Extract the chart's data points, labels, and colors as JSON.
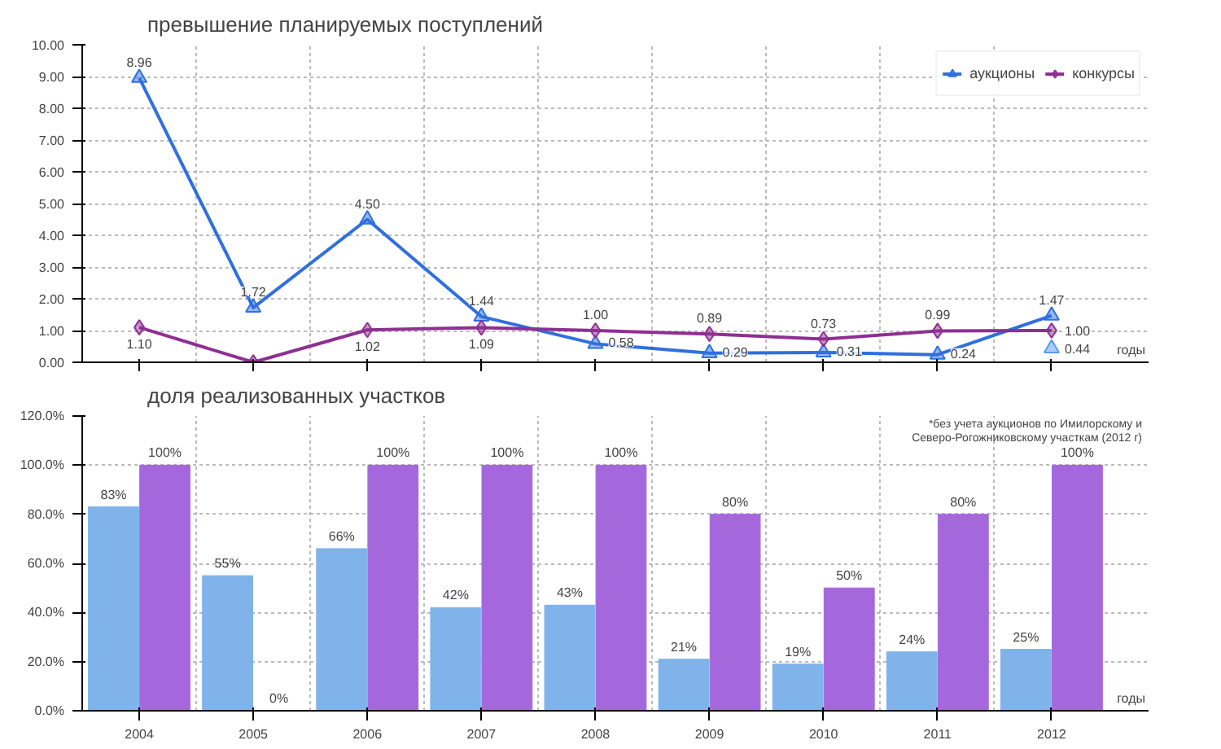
{
  "chart_data": [
    {
      "type": "line",
      "title": "превышение планируемых поступлений",
      "xlabel": "годы",
      "categories": [
        "2004",
        "2005",
        "2006",
        "2007",
        "2008",
        "2009",
        "2010",
        "2011",
        "2012"
      ],
      "series": [
        {
          "name": "аукционы",
          "color": "#2f6fe0",
          "marker": "triangle",
          "values": [
            8.96,
            1.72,
            4.5,
            1.44,
            0.58,
            0.29,
            0.31,
            0.24,
            1.47
          ],
          "value_labels": [
            "8.96",
            "1.72",
            "4.50",
            "1.44",
            "0.58",
            "0.29",
            "0.31",
            "0.24",
            "1.47"
          ]
        },
        {
          "name": "конкурсы",
          "color": "#8e2f92",
          "marker": "diamond",
          "values": [
            1.1,
            0.0,
            1.02,
            1.09,
            1.0,
            0.89,
            0.73,
            0.99,
            1.0
          ],
          "value_labels": [
            "1.10",
            null,
            "1.02",
            "1.09",
            "1.00",
            "0.89",
            "0.73",
            "0.99",
            "1.00"
          ]
        },
        {
          "type": "scatter",
          "color": "#5b9af0",
          "marker": "triangle",
          "values": [
            null,
            null,
            null,
            null,
            null,
            null,
            null,
            null,
            0.44
          ],
          "value_labels": [
            null,
            null,
            null,
            null,
            null,
            null,
            null,
            null,
            "0.44"
          ]
        }
      ],
      "ylim": [
        0,
        10
      ],
      "yticks": [
        {
          "value": 0,
          "label": "0.00"
        },
        {
          "value": 1,
          "label": "1.00"
        },
        {
          "value": 2,
          "label": "2.00"
        },
        {
          "value": 3,
          "label": "3.00"
        },
        {
          "value": 4,
          "label": "4.00"
        },
        {
          "value": 5,
          "label": "5.00"
        },
        {
          "value": 6,
          "label": "6.00"
        },
        {
          "value": 7,
          "label": "7.00"
        },
        {
          "value": 8,
          "label": "8.00"
        },
        {
          "value": 9,
          "label": "9.00"
        },
        {
          "value": 10,
          "label": "10.00"
        }
      ],
      "grid": true,
      "legend": "top right",
      "tick_labels": "y",
      "line_style": "solid"
    },
    {
      "type": "bar",
      "title": "доля реализованных участков",
      "xlabel": "годы",
      "categories": [
        "2004",
        "2005",
        "2006",
        "2007",
        "2008",
        "2009",
        "2010",
        "2011",
        "2012"
      ],
      "series": [
        {
          "color": "#7fb3ea",
          "values": [
            83,
            55,
            66,
            42,
            43,
            21,
            19,
            24,
            25
          ],
          "value_labels": [
            "83%",
            "55%",
            "66%",
            "42%",
            "43%",
            "21%",
            "19%",
            "24%",
            "25%"
          ]
        },
        {
          "color": "#a468dc",
          "values": [
            100,
            0,
            100,
            100,
            100,
            80,
            50,
            80,
            100
          ],
          "value_labels": [
            "100%",
            "0%",
            "100%",
            "100%",
            "100%",
            "80%",
            "50%",
            "80%",
            "100%"
          ]
        }
      ],
      "ylim": [
        0,
        120
      ],
      "yticks": [
        {
          "value": 0,
          "label": "0.0%"
        },
        {
          "value": 20,
          "label": "20.0%"
        },
        {
          "value": 40,
          "label": "40.0%"
        },
        {
          "value": 60,
          "label": "60.0%"
        },
        {
          "value": 80,
          "label": "80.0%"
        },
        {
          "value": 100,
          "label": "100.0%"
        },
        {
          "value": 120,
          "label": "120.0%"
        }
      ],
      "annotations": [
        "*без учета аукционов по Имилорскому и\nСеверо-Рогожниковскому участкам (2012 г)"
      ],
      "grid": true
    }
  ]
}
